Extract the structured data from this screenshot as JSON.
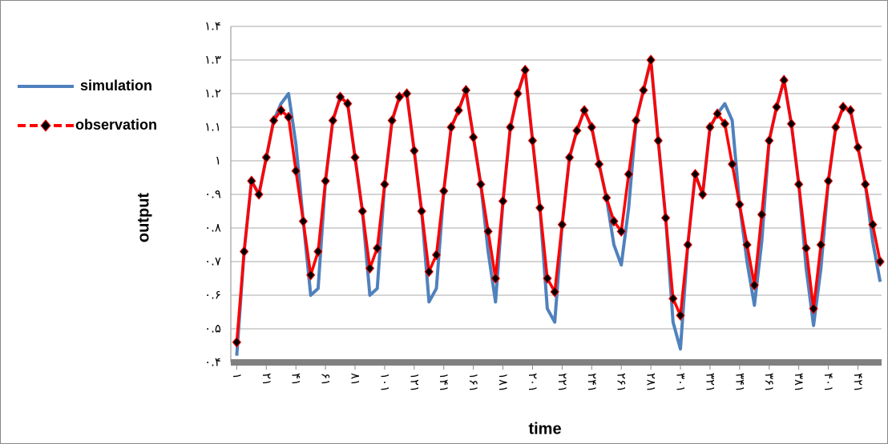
{
  "chart_data": {
    "type": "line",
    "xlabel": "time",
    "ylabel": "output",
    "x": [
      1,
      6,
      11,
      16,
      21,
      26,
      31,
      36,
      41,
      46,
      51,
      56,
      61,
      66,
      71,
      76,
      81,
      86,
      91,
      96,
      101,
      106,
      111,
      116,
      121,
      126,
      131,
      136,
      141,
      146,
      151,
      156,
      161,
      166,
      171,
      176,
      181,
      186,
      191,
      196,
      201,
      206,
      211,
      216,
      221,
      226,
      231,
      236,
      241,
      246,
      251,
      256,
      261,
      266,
      271,
      276,
      281,
      286,
      291,
      296,
      301,
      306,
      311,
      316,
      321,
      326,
      331,
      336,
      341,
      346,
      351,
      356,
      361,
      366,
      371,
      376,
      381,
      386,
      391,
      396,
      401,
      406,
      411,
      416,
      421,
      426,
      431,
      436
    ],
    "series": [
      {
        "name": "simulation",
        "color": "#4f81bd",
        "values": [
          0.42,
          0.73,
          0.94,
          0.9,
          1.01,
          1.12,
          1.17,
          1.2,
          1.05,
          0.82,
          0.6,
          0.62,
          0.94,
          1.12,
          1.19,
          1.17,
          1.01,
          0.85,
          0.6,
          0.62,
          0.93,
          1.12,
          1.19,
          1.2,
          1.03,
          0.85,
          0.58,
          0.62,
          0.91,
          1.1,
          1.15,
          1.21,
          1.07,
          0.93,
          0.73,
          0.58,
          0.88,
          1.1,
          1.2,
          1.27,
          1.06,
          0.86,
          0.56,
          0.52,
          0.81,
          1.01,
          1.09,
          1.15,
          1.1,
          0.99,
          0.89,
          0.75,
          0.69,
          0.86,
          1.12,
          1.21,
          1.3,
          1.06,
          0.83,
          0.52,
          0.44,
          0.75,
          0.96,
          0.9,
          1.1,
          1.14,
          1.17,
          1.12,
          0.87,
          0.7,
          0.57,
          0.76,
          1.06,
          1.16,
          1.24,
          1.11,
          0.93,
          0.68,
          0.51,
          0.68,
          0.94,
          1.1,
          1.16,
          1.15,
          1.04,
          0.93,
          0.76,
          0.64
        ]
      },
      {
        "name": "observation",
        "color": "#ff0000",
        "marker_color": "#000000",
        "values": [
          0.46,
          0.73,
          0.94,
          0.9,
          1.01,
          1.12,
          1.15,
          1.13,
          0.97,
          0.82,
          0.66,
          0.73,
          0.94,
          1.12,
          1.19,
          1.17,
          1.01,
          0.85,
          0.68,
          0.74,
          0.93,
          1.12,
          1.19,
          1.2,
          1.03,
          0.85,
          0.67,
          0.72,
          0.91,
          1.1,
          1.15,
          1.21,
          1.07,
          0.93,
          0.79,
          0.65,
          0.88,
          1.1,
          1.2,
          1.27,
          1.06,
          0.86,
          0.65,
          0.61,
          0.81,
          1.01,
          1.09,
          1.15,
          1.1,
          0.99,
          0.89,
          0.82,
          0.79,
          0.96,
          1.12,
          1.21,
          1.3,
          1.06,
          0.83,
          0.59,
          0.54,
          0.75,
          0.96,
          0.9,
          1.1,
          1.14,
          1.11,
          0.99,
          0.87,
          0.75,
          0.63,
          0.84,
          1.06,
          1.16,
          1.24,
          1.11,
          0.93,
          0.74,
          0.56,
          0.75,
          0.94,
          1.1,
          1.16,
          1.15,
          1.04,
          0.93,
          0.81,
          0.7
        ]
      }
    ],
    "xlim": [
      -3,
      437
    ],
    "xticks": [
      {
        "value": 1,
        "label": "۱"
      },
      {
        "value": 21,
        "label": "۲۱"
      },
      {
        "value": 41,
        "label": "۴۱"
      },
      {
        "value": 61,
        "label": "۶۱"
      },
      {
        "value": 81,
        "label": "۸۱"
      },
      {
        "value": 101,
        "label": "۱۰۱"
      },
      {
        "value": 121,
        "label": "۱۲۱"
      },
      {
        "value": 141,
        "label": "۱۴۱"
      },
      {
        "value": 161,
        "label": "۱۶۱"
      },
      {
        "value": 181,
        "label": "۱۸۱"
      },
      {
        "value": 201,
        "label": "۲۰۱"
      },
      {
        "value": 221,
        "label": "۲۲۱"
      },
      {
        "value": 241,
        "label": "۲۴۱"
      },
      {
        "value": 261,
        "label": "۲۶۱"
      },
      {
        "value": 281,
        "label": "۲۸۱"
      },
      {
        "value": 301,
        "label": "۳۰۱"
      },
      {
        "value": 321,
        "label": "۳۲۱"
      },
      {
        "value": 341,
        "label": "۳۴۱"
      },
      {
        "value": 361,
        "label": "۳۶۱"
      },
      {
        "value": 381,
        "label": "۳۸۱"
      },
      {
        "value": 401,
        "label": "۴۰۱"
      },
      {
        "value": 421,
        "label": "۴۲۱"
      }
    ],
    "ylim": [
      0.4,
      1.4
    ],
    "yticks": [
      {
        "value": 0.4,
        "label": "۰.۴"
      },
      {
        "value": 0.5,
        "label": "۰.۵"
      },
      {
        "value": 0.6,
        "label": "۰.۶"
      },
      {
        "value": 0.7,
        "label": "۰.۷"
      },
      {
        "value": 0.8,
        "label": "۰.۸"
      },
      {
        "value": 0.9,
        "label": "۰.۹"
      },
      {
        "value": 1,
        "label": "۱"
      },
      {
        "value": 1.1,
        "label": "۱.۱"
      },
      {
        "value": 1.2,
        "label": "۱.۲"
      },
      {
        "value": 1.3,
        "label": "۱.۳"
      },
      {
        "value": 1.4,
        "label": "۱.۴"
      }
    ],
    "grid": true,
    "legend": "left"
  }
}
